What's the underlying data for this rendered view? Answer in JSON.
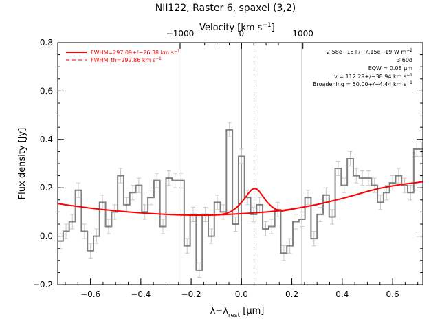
{
  "chart_data": {
    "type": "line",
    "title": "NII122, Raster 6, spaxel (3,2)",
    "xlabel": "λ−λ",
    "xlabel_sub": "rest",
    "xlabel_unit": " [μm]",
    "ylabel": "Flux density [Jy]",
    "top_axis_label": "Velocity [km s",
    "top_axis_label_sup": "−1",
    "top_axis_label_end": "]",
    "xlim": [
      -0.73,
      0.72
    ],
    "ylim": [
      -0.2,
      0.8
    ],
    "x_ticks": [
      -0.6,
      -0.4,
      -0.2,
      0.0,
      0.2,
      0.4,
      0.6
    ],
    "x_tick_labels": [
      "−0.6",
      "−0.4",
      "−0.2",
      "0.0",
      "0.2",
      "0.4",
      "0.6"
    ],
    "y_ticks": [
      -0.2,
      0.0,
      0.2,
      0.4,
      0.6,
      0.8
    ],
    "y_tick_labels": [
      "−0.2",
      "0.0",
      "0.2",
      "0.4",
      "0.6",
      "0.8"
    ],
    "top_ticks_x": [
      -0.244,
      0.0,
      0.244
    ],
    "top_tick_labels": [
      "−1000",
      "0",
      "1000"
    ],
    "vlines_solid_x": [
      -0.24,
      0.0,
      0.24
    ],
    "vline_dashed_x": 0.05,
    "legend": [
      {
        "label": "FWHM=297.09+/−26.38 km s",
        "sup": "−1",
        "style": "solid"
      },
      {
        "label": "FWHM_th=292.86 km s",
        "sup": "−1",
        "style": "dashed"
      }
    ],
    "annotations": [
      {
        "text": "2.58e−18+/−7.15e−19 W m",
        "sup": "−2"
      },
      {
        "text": "3.60σ",
        "sup": ""
      },
      {
        "text": "EQW = 0.08 μm",
        "sup": ""
      },
      {
        "text": "v = 112.29+/−38.94 km s",
        "sup": "−1"
      },
      {
        "text": "Broadening = 50.00+/−4.44 km s",
        "sup": "−1"
      }
    ],
    "colors": {
      "data": "#808080",
      "model": "#ff0000",
      "axes": "#000000"
    },
    "series": [
      {
        "style": "step",
        "x": [
          -0.72,
          -0.697,
          -0.672,
          -0.648,
          -0.624,
          -0.6,
          -0.576,
          -0.552,
          -0.528,
          -0.504,
          -0.48,
          -0.456,
          -0.432,
          -0.408,
          -0.384,
          -0.36,
          -0.336,
          -0.312,
          -0.288,
          -0.264,
          -0.24,
          -0.216,
          -0.192,
          -0.168,
          -0.144,
          -0.12,
          -0.096,
          -0.072,
          -0.048,
          -0.024,
          0.0,
          0.024,
          0.048,
          0.072,
          0.096,
          0.12,
          0.144,
          0.168,
          0.192,
          0.216,
          0.24,
          0.264,
          0.288,
          0.312,
          0.336,
          0.36,
          0.384,
          0.408,
          0.432,
          0.456,
          0.48,
          0.504,
          0.528,
          0.552,
          0.576,
          0.6,
          0.624,
          0.648,
          0.672,
          0.696,
          0.715
        ],
        "y": [
          -0.02,
          0.02,
          0.06,
          0.19,
          0.02,
          -0.06,
          0.0,
          0.14,
          0.04,
          0.1,
          0.25,
          0.13,
          0.18,
          0.21,
          0.1,
          0.16,
          0.23,
          0.04,
          0.24,
          0.23,
          0.23,
          -0.04,
          0.09,
          -0.14,
          0.09,
          0.0,
          0.14,
          0.1,
          0.44,
          0.05,
          0.33,
          0.16,
          0.09,
          0.13,
          0.03,
          0.04,
          0.11,
          -0.07,
          -0.04,
          0.06,
          0.07,
          0.16,
          -0.01,
          0.09,
          0.17,
          0.08,
          0.28,
          0.21,
          0.32,
          0.25,
          0.24,
          0.24,
          0.21,
          0.14,
          0.18,
          0.22,
          0.25,
          0.21,
          0.18,
          0.36,
          0.36
        ],
        "error": [
          0.03,
          0.03,
          0.03,
          0.03,
          0.03,
          0.03,
          0.03,
          0.03,
          0.03,
          0.03,
          0.03,
          0.03,
          0.03,
          0.03,
          0.03,
          0.03,
          0.03,
          0.03,
          0.03,
          0.03,
          0.03,
          0.03,
          0.03,
          0.03,
          0.03,
          0.03,
          0.03,
          0.03,
          0.03,
          0.03,
          0.03,
          0.03,
          0.03,
          0.03,
          0.03,
          0.03,
          0.03,
          0.03,
          0.03,
          0.03,
          0.03,
          0.03,
          0.03,
          0.03,
          0.03,
          0.03,
          0.03,
          0.03,
          0.03,
          0.03,
          0.03,
          0.03,
          0.03,
          0.03,
          0.03,
          0.03,
          0.03,
          0.03,
          0.03,
          0.03,
          0.03
        ]
      },
      {
        "style": "model",
        "x": [
          -0.73,
          -0.7,
          -0.65,
          -0.6,
          -0.55,
          -0.5,
          -0.45,
          -0.4,
          -0.35,
          -0.3,
          -0.25,
          -0.2,
          -0.15,
          -0.1,
          -0.05,
          0.0,
          0.05,
          0.1,
          0.15,
          0.2,
          0.25,
          0.3,
          0.35,
          0.4,
          0.45,
          0.5,
          0.55,
          0.6,
          0.65,
          0.7,
          0.72
        ],
        "y": [
          0.135,
          0.13,
          0.123,
          0.116,
          0.11,
          0.105,
          0.1,
          0.096,
          0.093,
          0.09,
          0.088,
          0.087,
          0.087,
          0.088,
          0.09,
          0.093,
          0.096,
          0.1,
          0.105,
          0.112,
          0.121,
          0.131,
          0.143,
          0.156,
          0.17,
          0.185,
          0.198,
          0.208,
          0.216,
          0.222,
          0.225
        ]
      },
      {
        "style": "fit",
        "x": [
          -0.14,
          -0.12,
          -0.1,
          -0.08,
          -0.06,
          -0.04,
          -0.02,
          0.0,
          0.01,
          0.02,
          0.03,
          0.04,
          0.05,
          0.06,
          0.07,
          0.08,
          0.1,
          0.12,
          0.14,
          0.16,
          0.18,
          0.2,
          0.22
        ],
        "y": [
          0.087,
          0.087,
          0.088,
          0.09,
          0.094,
          0.103,
          0.118,
          0.14,
          0.153,
          0.166,
          0.181,
          0.192,
          0.197,
          0.195,
          0.186,
          0.172,
          0.143,
          0.122,
          0.109,
          0.104,
          0.107,
          0.111,
          0.116
        ]
      }
    ]
  }
}
